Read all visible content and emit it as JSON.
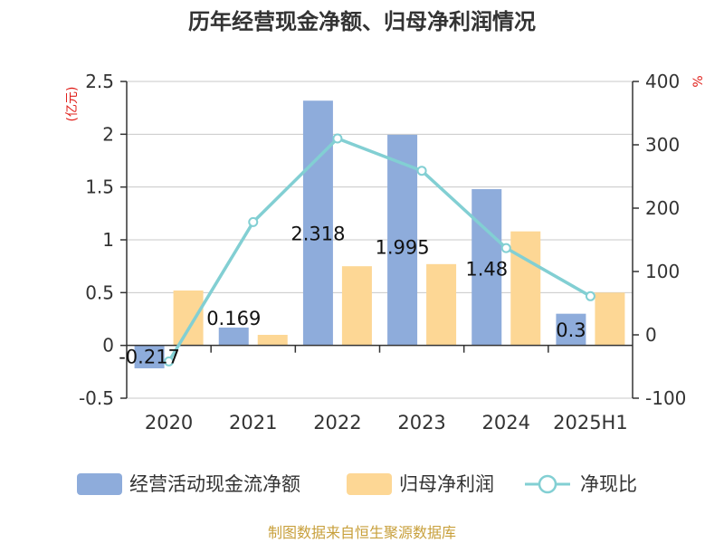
{
  "chart_data": {
    "type": "bar",
    "title": "历年经营现金净额、归母净利润情况",
    "categories": [
      "2020",
      "2021",
      "2022",
      "2023",
      "2024",
      "2025H1"
    ],
    "left_axis": {
      "unit_label": "(亿元)",
      "ylim": [
        -0.5,
        2.5
      ],
      "ticks": [
        -0.5,
        0,
        0.5,
        1,
        1.5,
        2,
        2.5
      ],
      "tick_labels": [
        "-0.5",
        "0",
        "0.5",
        "1",
        "1.5",
        "2",
        "2.5"
      ]
    },
    "right_axis": {
      "unit_label": "%",
      "ylim": [
        -100,
        400
      ],
      "ticks": [
        -100,
        0,
        100,
        200,
        300,
        400
      ],
      "tick_labels": [
        "-100",
        "0",
        "100",
        "200",
        "300",
        "400"
      ]
    },
    "series": [
      {
        "name": "经营活动现金流净额",
        "kind": "bar",
        "axis": "left",
        "color": "#8eacdb",
        "values": [
          -0.217,
          0.169,
          2.318,
          1.995,
          1.48,
          0.3
        ],
        "labels": [
          "-0.217",
          "0.169",
          "2.318",
          "1.995",
          "1.48",
          "0.3"
        ]
      },
      {
        "name": "归母净利润",
        "kind": "bar",
        "axis": "left",
        "color": "#fdd795",
        "values": [
          0.52,
          0.1,
          0.75,
          0.77,
          1.08,
          0.5
        ]
      },
      {
        "name": "净现比",
        "kind": "line",
        "axis": "right",
        "color": "#82cfd3",
        "values": [
          -42,
          178,
          310,
          259,
          137,
          61
        ]
      }
    ],
    "grid": true,
    "legend_position": "bottom"
  },
  "source_note": "制图数据来自恒生聚源数据库"
}
